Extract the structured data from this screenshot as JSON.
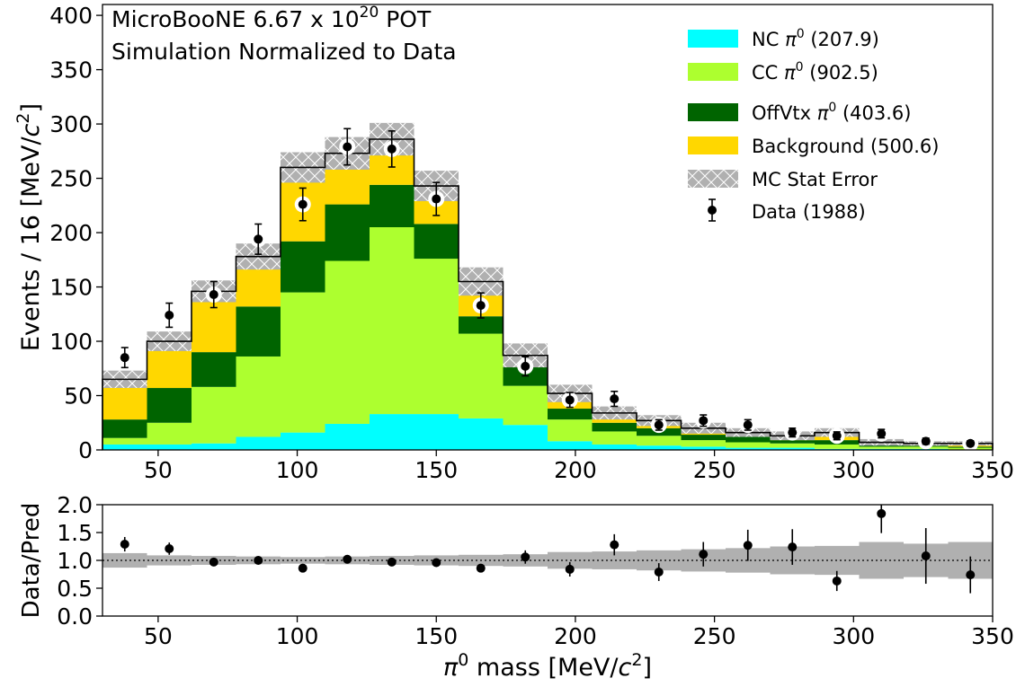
{
  "chart_data": [
    {
      "type": "stacked-histogram",
      "annotation": {
        "line1_prefix": "MicroBooNE 6.67 x 10",
        "line1_exp": "20",
        "line1_suffix": " POT",
        "line2": "Simulation Normalized to Data"
      },
      "ylabel": {
        "prefix": "Events / 16 [MeV/",
        "c": "c",
        "exp": "2",
        "suffix": "]"
      },
      "xlim": [
        30,
        350
      ],
      "ylim": [
        0,
        410
      ],
      "yticks": [
        "0",
        "50",
        "100",
        "150",
        "200",
        "250",
        "300",
        "350",
        "400"
      ],
      "xticks": [
        "50",
        "100",
        "150",
        "200",
        "250",
        "300",
        "350"
      ],
      "bin_edges": [
        30,
        46,
        62,
        78,
        94,
        110,
        126,
        142,
        158,
        174,
        190,
        206,
        222,
        238,
        254,
        270,
        286,
        302,
        318,
        334,
        350
      ],
      "series": [
        {
          "key": "nc",
          "name_prefix": "NC ",
          "pi": "π",
          "exp": "0",
          "name_suffix": " (207.9)",
          "color": "#00ffff",
          "values": [
            5,
            5,
            6,
            12,
            16,
            24,
            33,
            33,
            29,
            23,
            8,
            5,
            4,
            3,
            2,
            2,
            1,
            1,
            1,
            0
          ]
        },
        {
          "key": "cc",
          "name_prefix": "CC ",
          "pi": "π",
          "exp": "0",
          "name_suffix": " (902.5)",
          "color": "#adff2f",
          "values": [
            6,
            20,
            52,
            74,
            129,
            150,
            172,
            143,
            78,
            36,
            20,
            12,
            9,
            6,
            5,
            4,
            4,
            2,
            2,
            2
          ]
        },
        {
          "key": "offvtx",
          "name_prefix": "OffVtx ",
          "pi": "π",
          "exp": "0",
          "name_suffix": " (403.6)",
          "color": "#006400",
          "values": [
            17,
            32,
            32,
            46,
            47,
            52,
            39,
            32,
            16,
            18,
            10,
            8,
            7,
            5,
            5,
            3,
            4,
            2,
            1,
            1
          ]
        },
        {
          "key": "bkg",
          "name": "Background (500.6)",
          "color": "#ffd700",
          "values": [
            37,
            43,
            56,
            46,
            68,
            47,
            42,
            35,
            32,
            10,
            14,
            9,
            7,
            6,
            4,
            4,
            7,
            2,
            2,
            3
          ]
        },
        {
          "key": "stat",
          "name": "MC Stat Error",
          "color": "#b0b0b0",
          "errors": [
            8,
            9,
            10,
            12,
            14,
            15,
            15,
            14,
            13,
            11,
            8,
            6,
            5,
            5,
            4,
            4,
            4,
            3,
            2,
            2
          ]
        }
      ],
      "data": {
        "name": "Data (1988)",
        "x": [
          38,
          54,
          70,
          86,
          102,
          118,
          134,
          150,
          166,
          182,
          198,
          214,
          230,
          246,
          262,
          278,
          294,
          310,
          326,
          342
        ],
        "y": [
          85,
          124,
          143,
          194,
          226,
          279,
          277,
          231,
          133,
          77,
          46,
          47,
          23,
          27,
          23,
          16,
          13,
          15,
          8,
          6
        ],
        "err": [
          9.2,
          11.1,
          12.0,
          13.9,
          15.0,
          16.7,
          16.6,
          15.2,
          11.5,
          8.8,
          6.8,
          6.9,
          4.8,
          5.2,
          4.8,
          4.0,
          3.6,
          3.9,
          2.8,
          2.4
        ]
      }
    },
    {
      "type": "scatter",
      "ylabel": "Data/Pred",
      "xlabel": {
        "pi": "π",
        "exp": "0",
        "middle": " mass [MeV/",
        "c": "c",
        "exp2": "2",
        "suffix": "]"
      },
      "xlim": [
        30,
        350
      ],
      "ylim": [
        0,
        2.0
      ],
      "yticks": [
        "0.0",
        "0.5",
        "1.0",
        "1.5",
        "2.0"
      ],
      "xticks": [
        "50",
        "100",
        "150",
        "200",
        "250",
        "300",
        "350"
      ],
      "reference_line": 1.0,
      "band_half_width": [
        0.13,
        0.09,
        0.08,
        0.07,
        0.06,
        0.07,
        0.08,
        0.09,
        0.1,
        0.11,
        0.15,
        0.16,
        0.18,
        0.2,
        0.22,
        0.25,
        0.26,
        0.33,
        0.3,
        0.33
      ],
      "x": [
        38,
        54,
        70,
        86,
        102,
        118,
        134,
        150,
        166,
        182,
        198,
        214,
        230,
        246,
        262,
        278,
        294,
        310,
        326,
        342
      ],
      "ratio": [
        1.29,
        1.21,
        0.97,
        1.0,
        0.86,
        1.02,
        0.97,
        0.96,
        0.86,
        1.06,
        0.84,
        1.28,
        0.79,
        1.11,
        1.27,
        1.24,
        0.63,
        1.84,
        1.08,
        0.74
      ],
      "err": [
        0.13,
        0.11,
        0.07,
        0.07,
        0.06,
        0.06,
        0.06,
        0.06,
        0.07,
        0.12,
        0.13,
        0.19,
        0.16,
        0.22,
        0.28,
        0.32,
        0.18,
        0.35,
        0.5,
        0.33
      ]
    }
  ]
}
